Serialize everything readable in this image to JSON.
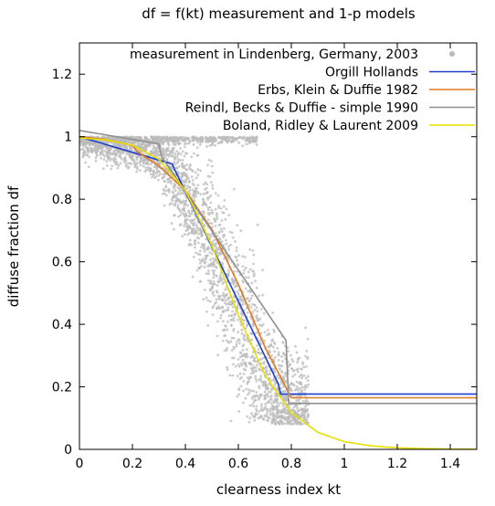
{
  "chart_data": {
    "type": "scatter",
    "title": "df = f(kt) measurement and 1-p models",
    "xlabel": "clearness index kt",
    "ylabel": "diffuse fraction df",
    "xlim": [
      0,
      1.5
    ],
    "ylim": [
      0,
      1.3
    ],
    "xticks": [
      0,
      0.2,
      0.4,
      0.6,
      0.8,
      1,
      1.2,
      1.4
    ],
    "xtick_labels": [
      "0",
      "0.2",
      "0.4",
      "0.6",
      "0.8",
      "1",
      "1.2",
      "1.4"
    ],
    "yticks": [
      0,
      0.2,
      0.4,
      0.6,
      0.8,
      1,
      1.2
    ],
    "ytick_labels": [
      "0",
      "0.2",
      "0.4",
      "0.6",
      "0.8",
      "1",
      "1.2"
    ],
    "grid": false,
    "legend_position": "top-right",
    "series": [
      {
        "name": "measurement in Lindenberg, Germany, 2003",
        "type": "scatter",
        "color": "#bbbbbb",
        "description_points": [
          [
            0.02,
            0.99
          ],
          [
            0.05,
            0.98
          ],
          [
            0.1,
            0.97
          ],
          [
            0.15,
            0.97
          ],
          [
            0.2,
            0.96
          ],
          [
            0.25,
            0.95
          ],
          [
            0.3,
            0.93
          ],
          [
            0.35,
            0.88
          ],
          [
            0.4,
            0.82
          ],
          [
            0.45,
            0.74
          ],
          [
            0.5,
            0.64
          ],
          [
            0.55,
            0.54
          ],
          [
            0.6,
            0.43
          ],
          [
            0.65,
            0.33
          ],
          [
            0.7,
            0.24
          ],
          [
            0.75,
            0.16
          ],
          [
            0.8,
            0.13
          ],
          [
            0.85,
            0.15
          ]
        ]
      },
      {
        "name": "Orgill  Hollands",
        "type": "line",
        "color": "#1f3fd1",
        "x": [
          0,
          0.35,
          0.36,
          0.4,
          0.5,
          0.6,
          0.7,
          0.75,
          0.76,
          1.5
        ],
        "y": [
          1.0,
          0.9125,
          0.8938,
          0.8237,
          0.6486,
          0.4734,
          0.2982,
          0.2106,
          0.177,
          0.177
        ]
      },
      {
        "name": "Erbs, Klein & Duffie 1982",
        "type": "line",
        "color": "#e07a1e",
        "x": [
          0,
          0.1,
          0.2,
          0.22,
          0.3,
          0.4,
          0.5,
          0.6,
          0.7,
          0.8,
          1.5
        ],
        "y": [
          1.0,
          0.991,
          0.9719,
          0.9511,
          0.9062,
          0.8283,
          0.7028,
          0.5279,
          0.3277,
          0.165,
          0.165
        ]
      },
      {
        "name": "Reindl, Becks & Duffie - simple 1990",
        "type": "line",
        "color": "#909090",
        "x": [
          0,
          0.3,
          0.31,
          0.4,
          0.5,
          0.6,
          0.7,
          0.78,
          0.79,
          1.5
        ],
        "y": [
          1.02,
          0.977,
          0.9363,
          0.8237,
          0.6986,
          0.5735,
          0.4484,
          0.3483,
          0.147,
          0.147
        ]
      },
      {
        "name": "Boland, Ridley & Laurent 2009",
        "type": "line",
        "color": "#e6e000",
        "x": [
          0,
          0.1,
          0.2,
          0.3,
          0.4,
          0.5,
          0.6,
          0.7,
          0.8,
          0.9,
          1.0,
          1.1,
          1.2,
          1.3,
          1.5
        ],
        "y": [
          0.9963,
          0.9898,
          0.9725,
          0.9281,
          0.8285,
          0.6523,
          0.4288,
          0.2374,
          0.1171,
          0.0543,
          0.0245,
          0.011,
          0.0049,
          0.0022,
          0.0004
        ]
      }
    ]
  }
}
